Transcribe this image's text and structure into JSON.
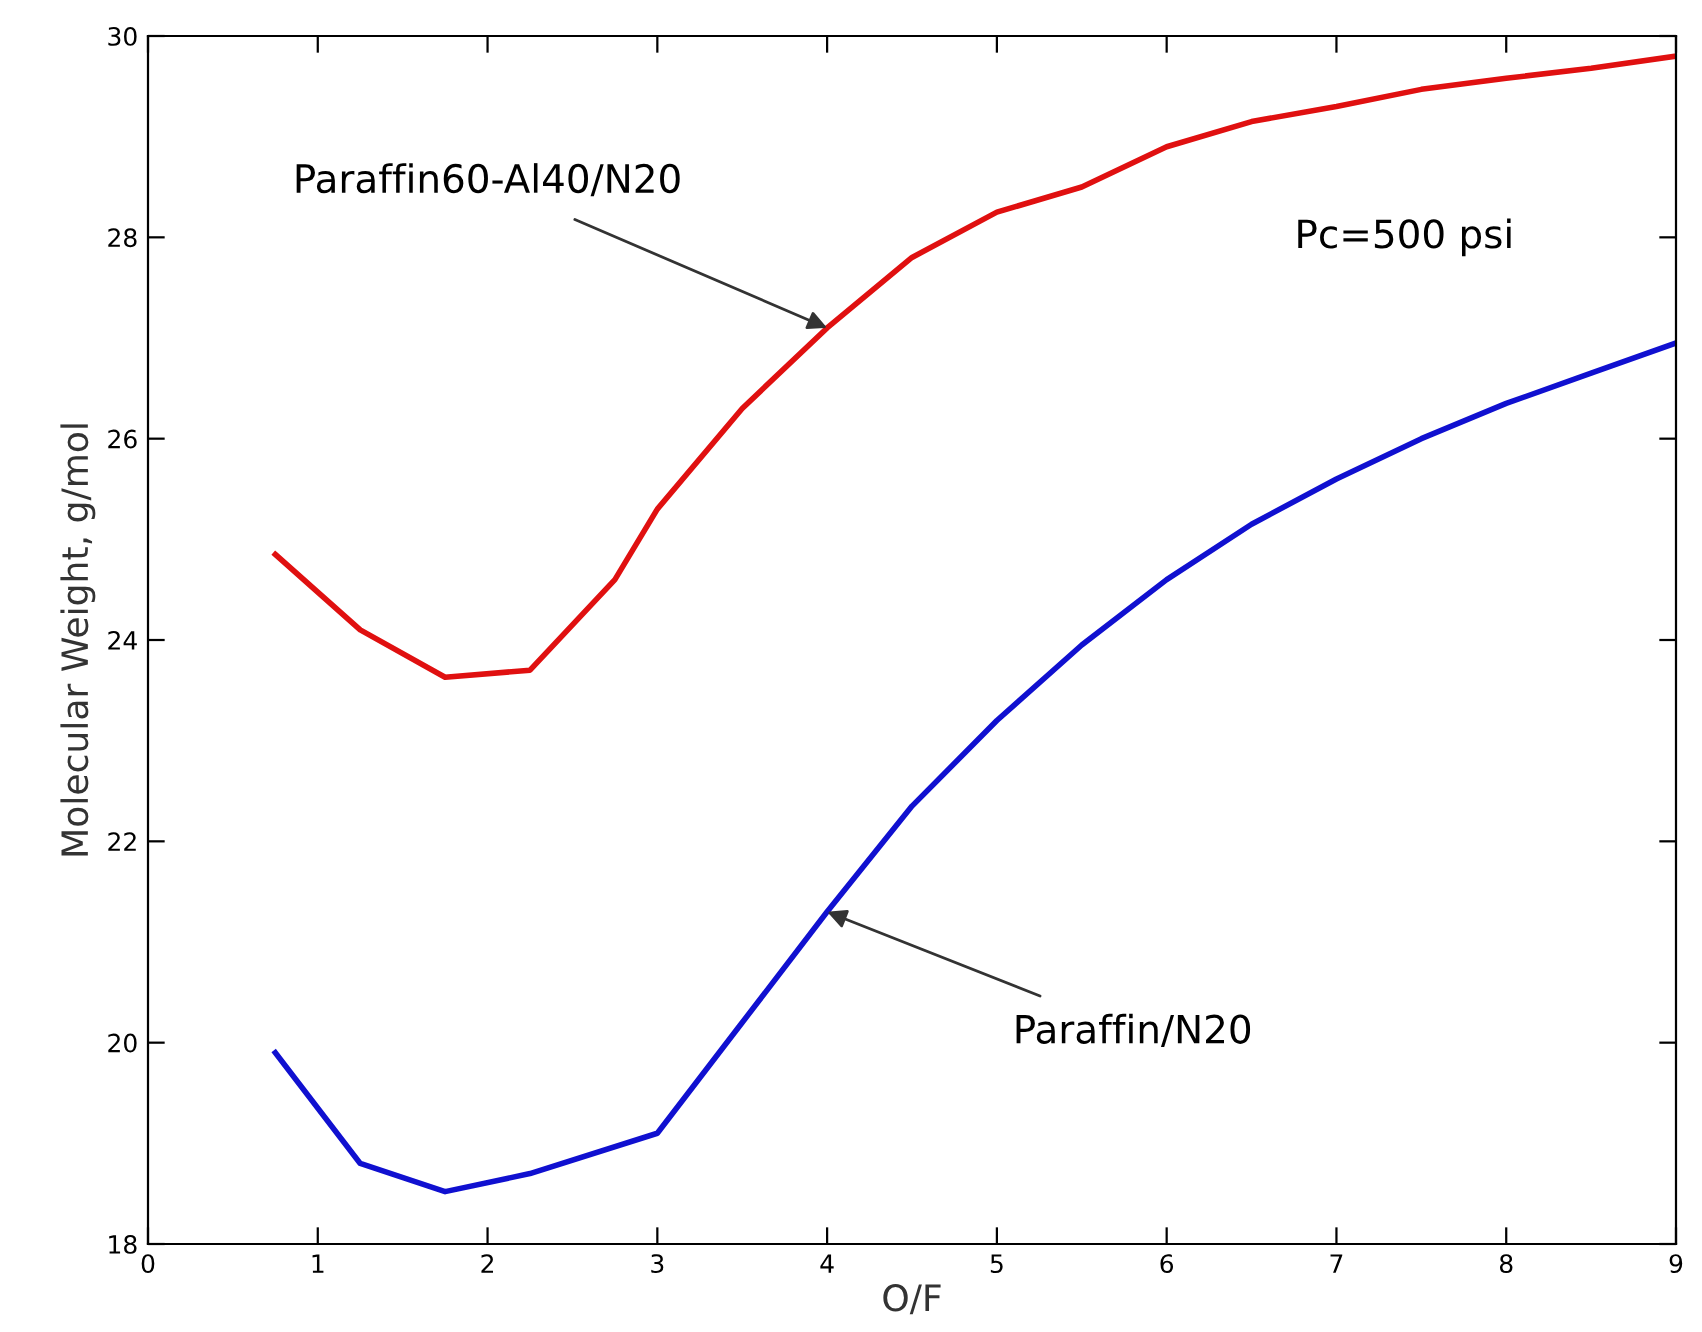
{
  "chart_data": {
    "type": "line",
    "xlabel": "O/F",
    "ylabel": "Molecular Weight, g/mol",
    "xlim": [
      0,
      9
    ],
    "ylim": [
      18,
      30
    ],
    "xticks": [
      0,
      1,
      2,
      3,
      4,
      5,
      6,
      7,
      8,
      9
    ],
    "yticks": [
      18,
      20,
      22,
      24,
      26,
      28,
      30
    ],
    "grid": false,
    "legend": false,
    "marker": "none",
    "line_style": "solid",
    "series": [
      {
        "color": "#e01010",
        "x": [
          0.75,
          1.25,
          1.75,
          2.25,
          2.75,
          3.0,
          3.5,
          4.0,
          4.5,
          5.0,
          5.5,
          6.0,
          6.5,
          7.0,
          7.5,
          8.0,
          8.5,
          9.0
        ],
        "values": [
          24.85,
          24.1,
          23.63,
          23.7,
          24.6,
          25.3,
          26.3,
          27.1,
          27.8,
          28.25,
          28.5,
          28.9,
          29.15,
          29.3,
          29.47,
          29.58,
          29.68,
          29.8
        ]
      },
      {
        "color": "#1010d0",
        "x": [
          0.75,
          1.25,
          1.75,
          2.25,
          3.0,
          3.5,
          4.0,
          4.5,
          5.0,
          5.5,
          6.0,
          6.5,
          7.0,
          7.5,
          8.0,
          8.5,
          9.0
        ],
        "values": [
          19.9,
          18.8,
          18.52,
          18.7,
          19.1,
          20.2,
          21.3,
          22.35,
          23.2,
          23.95,
          24.6,
          25.15,
          25.6,
          26.0,
          26.35,
          26.65,
          26.95
        ]
      }
    ],
    "annotations": [
      {
        "text": "Paraffin60-Al40/N20",
        "x": 4.0,
        "y": 27.1
      },
      {
        "text": "Paraffin/N20",
        "x": 4.0,
        "y": 21.3
      },
      "Pc=500 psi"
    ]
  }
}
